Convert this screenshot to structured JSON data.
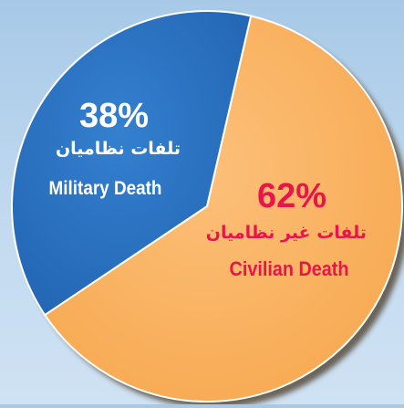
{
  "chart_data": {
    "type": "pie",
    "title": "",
    "slices": [
      {
        "value": 62,
        "percent_label": "62%",
        "label_fa": "تلفات غیر نظامیان",
        "label_en": "Civilian Death",
        "color": "#fbb264",
        "text_color": "#e8154a"
      },
      {
        "value": 38,
        "percent_label": "38%",
        "label_fa": "تلفات نظامیان",
        "label_en": "Military Death",
        "color": "#2b73c3",
        "text_color": "#ffffff"
      }
    ],
    "legend": "none"
  },
  "theme": {
    "background_top": "#a7c9e7",
    "background_bottom": "#cfe2f3",
    "slice_border": "#ffffff",
    "shadow": "#4a3a26"
  }
}
